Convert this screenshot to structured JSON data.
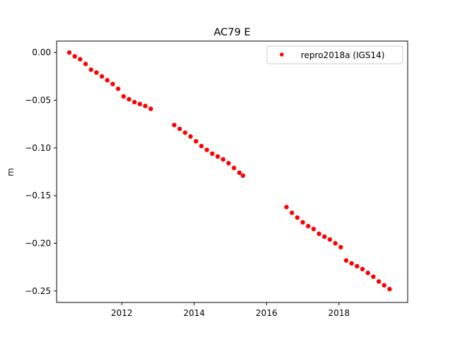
{
  "chart_data": {
    "type": "scatter",
    "title": "AC79 E",
    "xlabel": "",
    "ylabel": "m",
    "xlim": [
      2010.2,
      2019.9
    ],
    "ylim": [
      -0.262,
      0.012
    ],
    "x_ticks": [
      2012,
      2014,
      2016,
      2018
    ],
    "x_tick_labels": [
      "2012",
      "2014",
      "2016",
      "2018"
    ],
    "y_ticks": [
      0.0,
      -0.05,
      -0.1,
      -0.15,
      -0.2,
      -0.25
    ],
    "y_tick_labels": [
      "0.00",
      "−0.05",
      "−0.10",
      "−0.15",
      "−0.20",
      "−0.25"
    ],
    "grid": false,
    "legend_position": "upper right",
    "series": [
      {
        "name": "repro2018a (IGS14)",
        "color": "#ff0000",
        "marker": "point",
        "segments": [
          {
            "x": [
              2010.55,
              2010.7,
              2010.85,
              2011.0,
              2011.15,
              2011.3,
              2011.45,
              2011.6,
              2011.75,
              2011.9,
              2012.05,
              2012.2,
              2012.35,
              2012.5,
              2012.65,
              2012.8
            ],
            "y": [
              0.0,
              -0.004,
              -0.007,
              -0.012,
              -0.018,
              -0.021,
              -0.025,
              -0.029,
              -0.033,
              -0.038,
              -0.046,
              -0.049,
              -0.052,
              -0.054,
              -0.056,
              -0.059
            ]
          },
          {
            "x": [
              2013.45,
              2013.6,
              2013.75,
              2013.9,
              2014.05,
              2014.2,
              2014.35,
              2014.5,
              2014.65,
              2014.8,
              2014.95,
              2015.1,
              2015.25,
              2015.35
            ],
            "y": [
              -0.076,
              -0.08,
              -0.084,
              -0.088,
              -0.093,
              -0.098,
              -0.102,
              -0.106,
              -0.109,
              -0.112,
              -0.116,
              -0.121,
              -0.126,
              -0.129
            ]
          },
          {
            "x": [
              2016.55,
              2016.7,
              2016.85,
              2017.0,
              2017.15,
              2017.3,
              2017.45,
              2017.6,
              2017.75,
              2017.9,
              2018.05,
              2018.2,
              2018.35,
              2018.5,
              2018.65,
              2018.8,
              2018.95,
              2019.1,
              2019.25,
              2019.4
            ],
            "y": [
              -0.162,
              -0.168,
              -0.173,
              -0.178,
              -0.182,
              -0.185,
              -0.19,
              -0.193,
              -0.196,
              -0.2,
              -0.204,
              -0.218,
              -0.221,
              -0.224,
              -0.227,
              -0.231,
              -0.235,
              -0.24,
              -0.244,
              -0.248
            ]
          }
        ]
      }
    ]
  }
}
